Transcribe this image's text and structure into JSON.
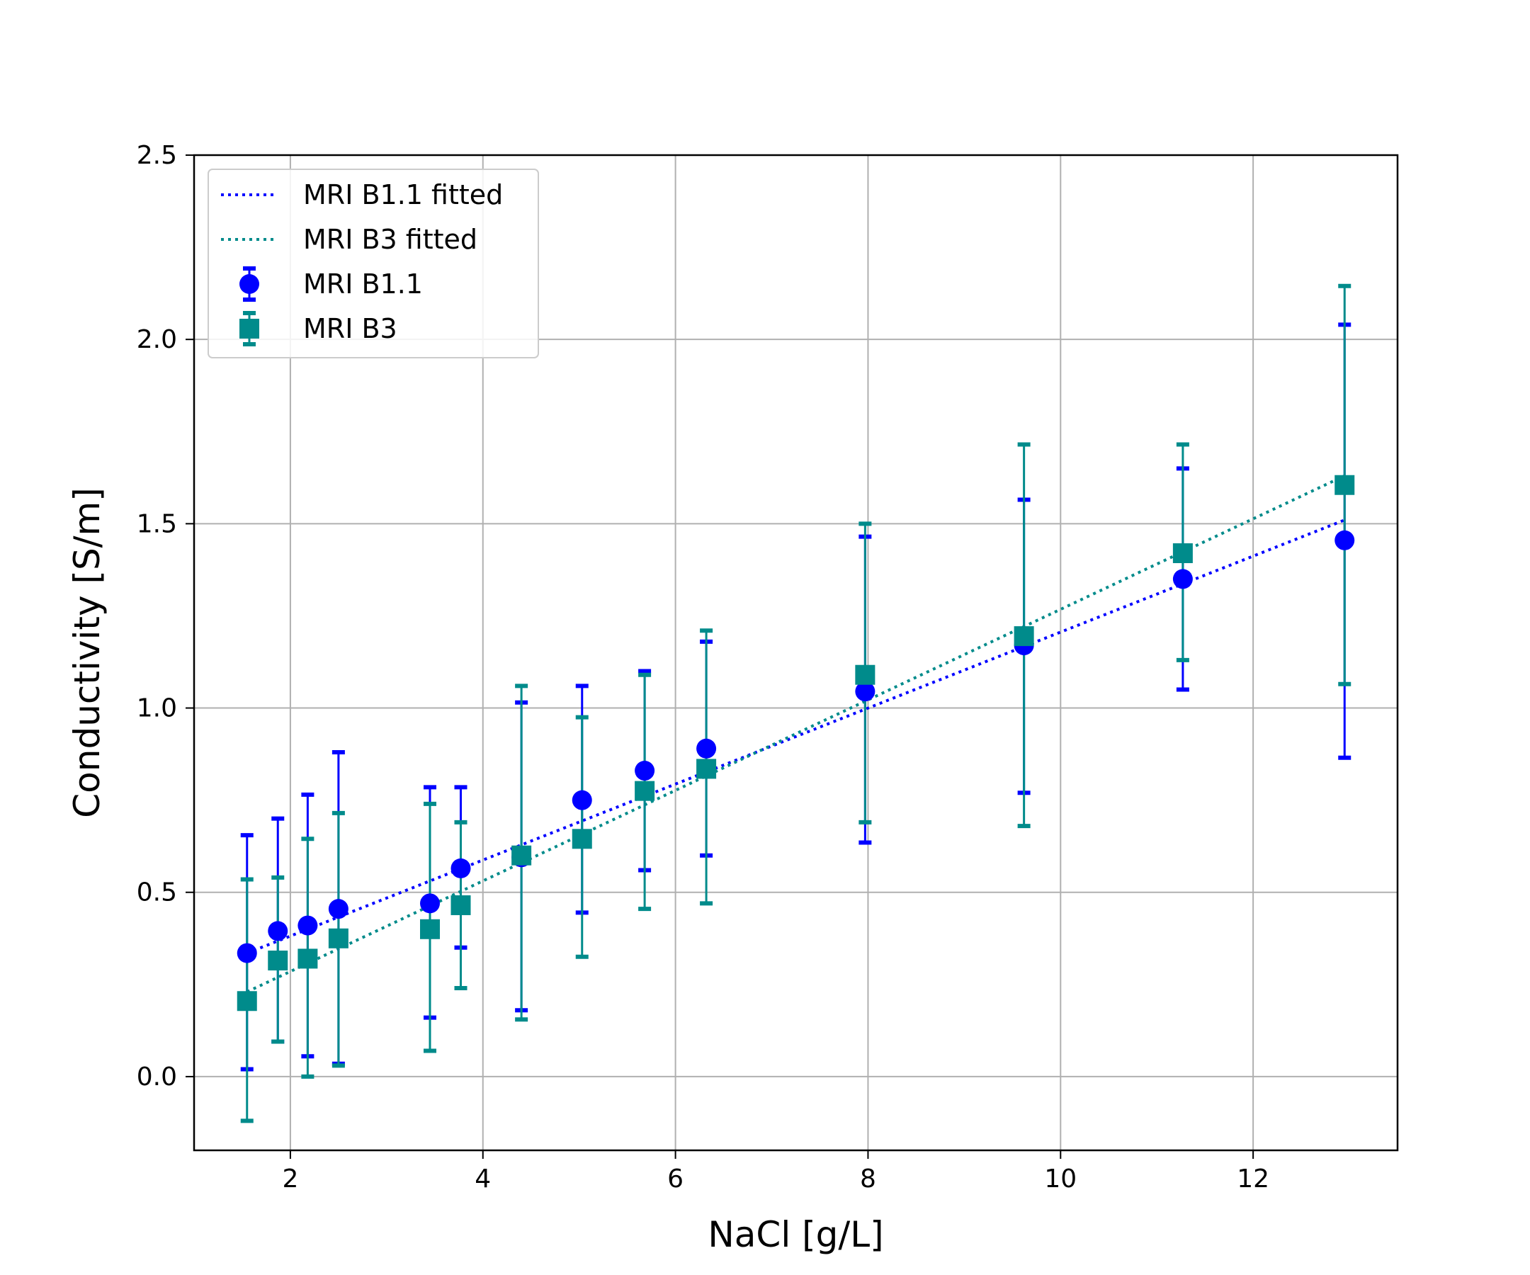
{
  "chart_data": {
    "type": "scatter",
    "title": "",
    "xlabel": "NaCl [g/L]",
    "ylabel": "Conductivity [S/m]",
    "xlim": [
      1.0,
      13.5
    ],
    "ylim": [
      -0.2,
      2.5
    ],
    "xticks": [
      2,
      4,
      6,
      8,
      10,
      12
    ],
    "xtick_labels": [
      "2",
      "4",
      "6",
      "8",
      "10",
      "12"
    ],
    "yticks": [
      0.0,
      0.5,
      1.0,
      1.5,
      2.0,
      2.5
    ],
    "ytick_labels": [
      "0.0",
      "0.5",
      "1.0",
      "1.5",
      "2.0",
      "2.5"
    ],
    "grid": true,
    "legend_position": "upper-left",
    "series": [
      {
        "name": "MRI B1.1",
        "kind": "errorbar",
        "marker": "circle",
        "color": "#0000ff",
        "x": [
          1.55,
          1.87,
          2.18,
          2.5,
          3.45,
          3.77,
          4.4,
          5.03,
          5.68,
          6.32,
          7.97,
          9.62,
          11.27,
          12.95
        ],
        "y": [
          0.335,
          0.395,
          0.41,
          0.455,
          0.47,
          0.565,
          0.595,
          0.75,
          0.83,
          0.89,
          1.045,
          1.17,
          1.35,
          1.455
        ],
        "y_low": [
          0.02,
          0.095,
          0.055,
          0.035,
          0.16,
          0.35,
          0.18,
          0.445,
          0.56,
          0.6,
          0.635,
          0.77,
          1.05,
          0.865
        ],
        "y_high": [
          0.655,
          0.7,
          0.765,
          0.88,
          0.785,
          0.785,
          1.015,
          1.06,
          1.1,
          1.18,
          1.465,
          1.565,
          1.65,
          2.04
        ]
      },
      {
        "name": "MRI B3",
        "kind": "errorbar",
        "marker": "square",
        "color": "#008b8b",
        "x": [
          1.55,
          1.87,
          2.18,
          2.5,
          3.45,
          3.77,
          4.4,
          5.03,
          5.68,
          6.32,
          7.97,
          9.62,
          11.27,
          12.95
        ],
        "y": [
          0.205,
          0.315,
          0.32,
          0.375,
          0.4,
          0.465,
          0.6,
          0.645,
          0.775,
          0.835,
          1.09,
          1.195,
          1.42,
          1.605
        ],
        "y_low": [
          -0.12,
          0.095,
          0.0,
          0.03,
          0.07,
          0.24,
          0.155,
          0.325,
          0.455,
          0.47,
          0.69,
          0.68,
          1.13,
          1.065
        ],
        "y_high": [
          0.535,
          0.54,
          0.645,
          0.715,
          0.74,
          0.69,
          1.06,
          0.975,
          1.09,
          1.21,
          1.5,
          1.715,
          1.715,
          2.145
        ]
      },
      {
        "name": "MRI B1.1 fitted",
        "kind": "line",
        "style": "dotted",
        "color": "#0000ff",
        "x": [
          1.55,
          12.95
        ],
        "y": [
          0.335,
          1.51
        ]
      },
      {
        "name": "MRI B3 fitted",
        "kind": "line",
        "style": "dotted",
        "color": "#008b8b",
        "x": [
          1.55,
          12.95
        ],
        "y": [
          0.23,
          1.63
        ]
      }
    ]
  }
}
